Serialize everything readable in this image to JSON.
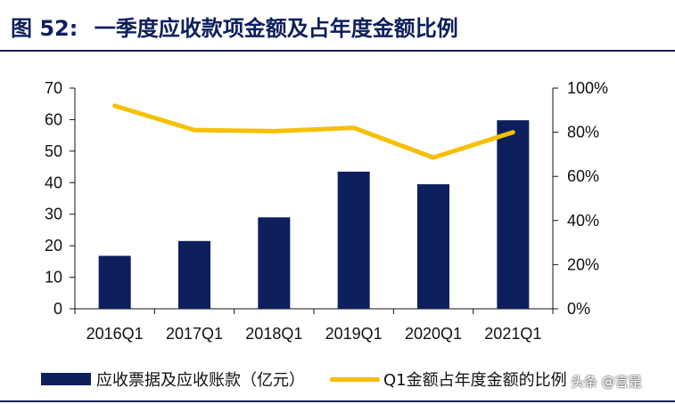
{
  "title": {
    "number": "图 52:",
    "text": "一季度应收款项金额及占年度金额比例"
  },
  "watermark": "头条 @言是",
  "chart_data": {
    "type": "bar+line",
    "categories": [
      "2016Q1",
      "2017Q1",
      "2018Q1",
      "2019Q1",
      "2020Q1",
      "2021Q1"
    ],
    "series": [
      {
        "name": "应收票据及应收账款（亿元）",
        "type": "bar",
        "axis": "left",
        "color": "#0d1f5c",
        "values": [
          16.8,
          21.5,
          29.0,
          43.5,
          39.5,
          59.8
        ]
      },
      {
        "name": "Q1金额占年度金额的比例",
        "type": "line",
        "axis": "right",
        "color": "#f6c000",
        "values": [
          0.92,
          0.81,
          0.805,
          0.82,
          0.685,
          0.8
        ]
      }
    ],
    "y_left": {
      "min": 0,
      "max": 70,
      "ticks": [
        0,
        10,
        20,
        30,
        40,
        50,
        60,
        70
      ]
    },
    "y_right": {
      "min": 0,
      "max": 1.0,
      "ticks": [
        "0%",
        "20%",
        "40%",
        "60%",
        "80%",
        "100%"
      ]
    },
    "grid": false,
    "legend_position": "bottom"
  }
}
